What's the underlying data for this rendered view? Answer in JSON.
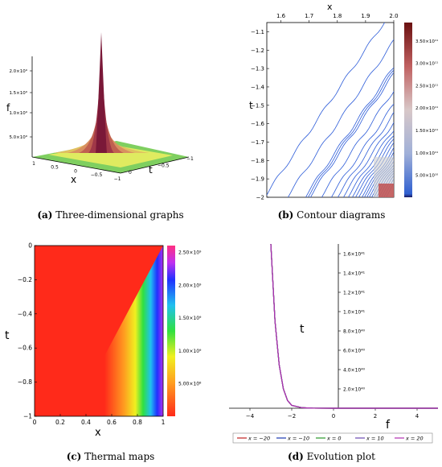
{
  "captions": [
    {
      "label": "(a)",
      "text": " Three-dimensional graphs"
    },
    {
      "label": "(b)",
      "text": " Contour diagrams"
    },
    {
      "label": "(c)",
      "text": " Thermal maps"
    },
    {
      "label": "(d)",
      "text": " Evolution plot"
    }
  ],
  "chart_data": [
    {
      "type": "surface",
      "xlabel": "x",
      "ylabel": "t",
      "zlabel": "f",
      "x_ticks": [
        "1",
        "0.5",
        "0",
        "−0.5",
        "−1"
      ],
      "t_ticks": [
        "0",
        "−0.5",
        "−1"
      ],
      "z_ticks": [
        "5.0×10⁹",
        "1.0×10⁹",
        "1.5×10⁹",
        "2.0×10⁹"
      ],
      "peak": {
        "x": -1,
        "t": -1
      },
      "colors": {
        "high": "#7a1838",
        "mid": "#c87050",
        "low": "#f0f060",
        "base": "#7fcf60"
      }
    },
    {
      "type": "contour",
      "xlabel": "x",
      "ylabel": "t",
      "xlim": [
        1.55,
        2.0
      ],
      "ylim": [
        -2.0,
        -1.05
      ],
      "x_ticks": [
        "1.6",
        "1.7",
        "1.8",
        "1.9",
        "2.0"
      ],
      "y_ticks": [
        "−1.1",
        "−1.2",
        "−1.3",
        "−1.4",
        "−1.5",
        "−1.6",
        "−1.7",
        "−1.8",
        "−1.9",
        "−2"
      ],
      "colorbar_ticks": [
        "5.00×10¹⁰",
        "1.00×10¹¹",
        "1.50×10¹¹",
        "2.00×10¹¹",
        "2.50×10¹¹",
        "3.00×10¹¹",
        "3.50×10¹¹"
      ],
      "colorbar_range": [
        0,
        390000000000.0
      ],
      "line_color": "#2a5ad8"
    },
    {
      "type": "heatmap",
      "xlabel": "x",
      "ylabel": "t",
      "xlim": [
        0,
        1
      ],
      "ylim": [
        -1,
        0
      ],
      "x_ticks": [
        "0",
        "0.2",
        "0.4",
        "0.6",
        "0.8",
        "1"
      ],
      "y_ticks": [
        "0",
        "−0.2",
        "−0.4",
        "−0.6",
        "−0.8",
        "−1"
      ],
      "colorbar_ticks": [
        "5.00×10⁸",
        "1.00×10⁹",
        "1.50×10⁹",
        "2.00×10⁹",
        "2.50×10⁹"
      ],
      "colorbar_range": [
        0,
        2600000000.0
      ]
    },
    {
      "type": "line",
      "xlabel": "f",
      "ylabel": "t",
      "xlim": [
        -5,
        5
      ],
      "ylim": [
        0,
        1.7e+41
      ],
      "x_ticks": [
        "−4",
        "−2",
        "0",
        "2",
        "4"
      ],
      "y_ticks": [
        "2.0×10⁴⁰",
        "4.0×10⁴⁰",
        "6.0×10⁴⁰",
        "8.0×10⁴⁰",
        "1.0×10⁴¹",
        "1.2×10⁴¹",
        "1.4×10⁴¹",
        "1.6×10⁴¹"
      ],
      "legend": "bottom",
      "series": [
        {
          "name": "x = −20",
          "color": "#c02020"
        },
        {
          "name": "x = −10",
          "color": "#1a3ab0"
        },
        {
          "name": "x = 0",
          "color": "#2a9a2a"
        },
        {
          "name": "x = 10",
          "color": "#6a4ab0"
        },
        {
          "name": "x = 20",
          "color": "#b030b0"
        }
      ],
      "curve": {
        "x": [
          -3.0,
          -2.8,
          -2.6,
          -2.4,
          -2.2,
          -2.0,
          -1.5,
          -1.0,
          0,
          2,
          5
        ],
        "y": [
          1.7e+41,
          9e+40,
          4.5e+40,
          2e+40,
          8e+39,
          3e+39,
          5e+38,
          1e+38,
          0,
          0,
          0
        ]
      }
    }
  ]
}
